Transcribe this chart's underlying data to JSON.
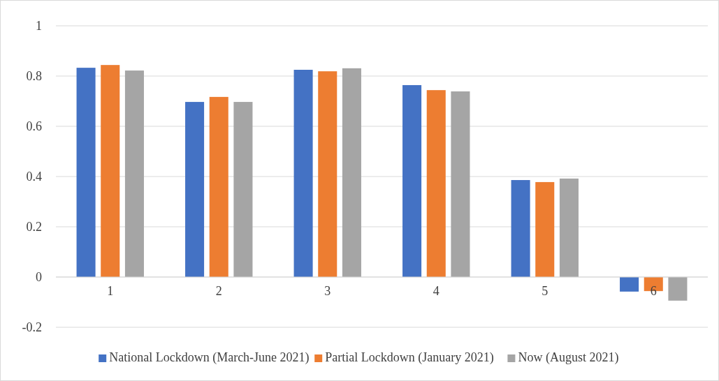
{
  "chart_data": {
    "type": "bar",
    "categories": [
      "1",
      "2",
      "3",
      "4",
      "5",
      "6"
    ],
    "series": [
      {
        "name": "National Lockdown (March-June 2021)",
        "color": "#4472c4",
        "values": [
          0.833,
          0.697,
          0.825,
          0.764,
          0.386,
          -0.058
        ]
      },
      {
        "name": "Partial Lockdown (January 2021)",
        "color": "#ed7d31",
        "values": [
          0.844,
          0.717,
          0.819,
          0.744,
          0.378,
          -0.056
        ]
      },
      {
        "name": "Now (August 2021)",
        "color": "#a5a5a5",
        "values": [
          0.822,
          0.697,
          0.831,
          0.739,
          0.392,
          -0.094
        ]
      }
    ],
    "ylim": [
      -0.2,
      1
    ],
    "yticks": [
      -0.2,
      0,
      0.2,
      0.4,
      0.6,
      0.8,
      1
    ],
    "grid": "y",
    "legend": "bottom"
  }
}
